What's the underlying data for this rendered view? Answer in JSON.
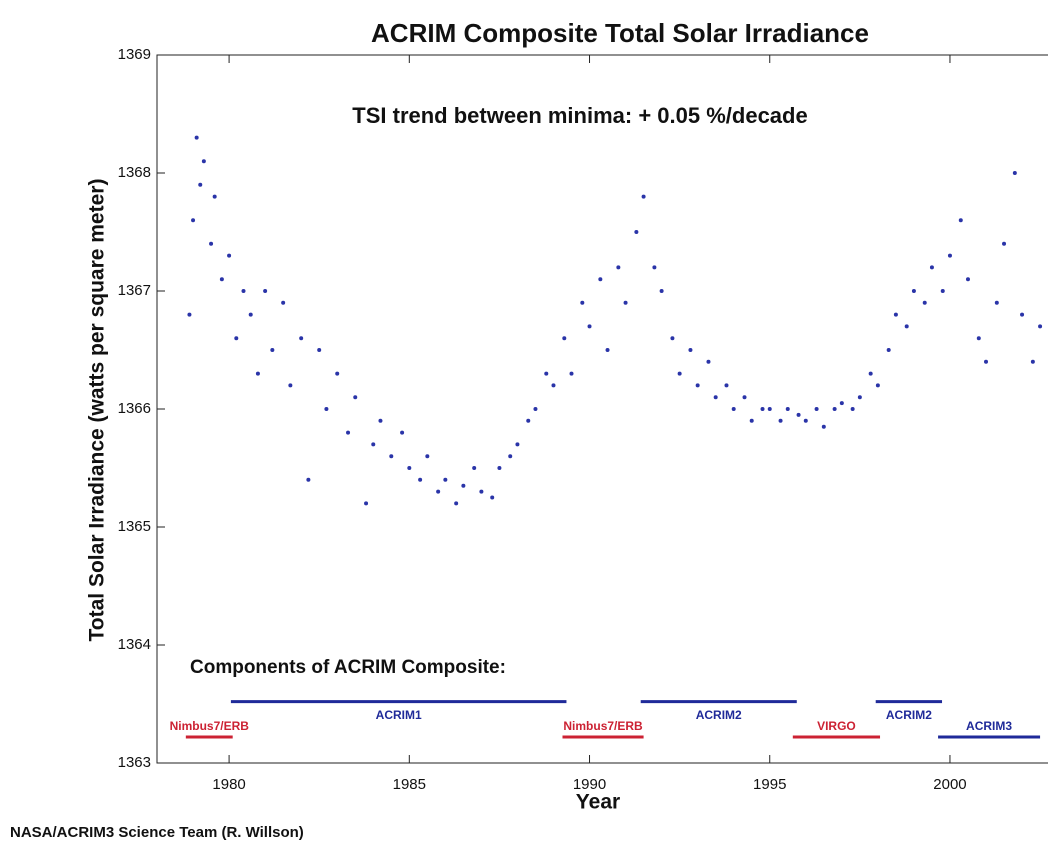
{
  "chart_data": {
    "type": "scatter",
    "title": "ACRIM Composite Total Solar Irradiance",
    "annotation": "TSI trend between minima: + 0.05 %/decade",
    "components_title": "Components of ACRIM Composite:",
    "footer": "NASA/ACRIM3 Science Team (R. Willson)",
    "x_label": "Year",
    "y_label": "Total Solar Irradiance (watts per square meter)",
    "xlim": [
      1978,
      2002.72
    ],
    "ylim": [
      1363,
      1369
    ],
    "xticks": [
      1980,
      1985,
      1990,
      1995,
      2000
    ],
    "yticks": [
      1363,
      1364,
      1365,
      1366,
      1367,
      1368,
      1369
    ],
    "grid": false,
    "series": [
      {
        "color": "#2a34a8",
        "x": [
          1978.9,
          1979.0,
          1979.1,
          1979.2,
          1979.3,
          1979.5,
          1979.6,
          1979.8,
          1980.0,
          1980.2,
          1980.4,
          1980.6,
          1980.8,
          1981.0,
          1981.2,
          1981.5,
          1981.7,
          1982.0,
          1982.2,
          1982.5,
          1982.7,
          1983.0,
          1983.3,
          1983.5,
          1983.8,
          1984.0,
          1984.2,
          1984.5,
          1984.8,
          1985.0,
          1985.3,
          1985.5,
          1985.8,
          1986.0,
          1986.3,
          1986.5,
          1986.8,
          1987.0,
          1987.3,
          1987.5,
          1987.8,
          1988.0,
          1988.3,
          1988.5,
          1988.8,
          1989.0,
          1989.3,
          1989.5,
          1989.8,
          1990.0,
          1990.3,
          1990.5,
          1990.8,
          1991.0,
          1991.3,
          1991.5,
          1991.8,
          1992.0,
          1992.3,
          1992.5,
          1992.8,
          1993.0,
          1993.3,
          1993.5,
          1993.8,
          1994.0,
          1994.3,
          1994.5,
          1994.8,
          1995.0,
          1995.3,
          1995.5,
          1995.8,
          1996.0,
          1996.3,
          1996.5,
          1996.8,
          1997.0,
          1997.3,
          1997.5,
          1997.8,
          1998.0,
          1998.3,
          1998.5,
          1998.8,
          1999.0,
          1999.3,
          1999.5,
          1999.8,
          2000.0,
          2000.3,
          2000.5,
          2000.8,
          2001.0,
          2001.3,
          2001.5,
          2001.8,
          2002.0,
          2002.3,
          2002.5
        ],
        "values": [
          1366.8,
          1367.6,
          1368.3,
          1367.9,
          1368.1,
          1367.4,
          1367.8,
          1367.1,
          1367.3,
          1366.6,
          1367.0,
          1366.8,
          1366.3,
          1367.0,
          1366.5,
          1366.9,
          1366.2,
          1366.6,
          1365.4,
          1366.5,
          1366.0,
          1366.3,
          1365.8,
          1366.1,
          1365.2,
          1365.7,
          1365.9,
          1365.6,
          1365.8,
          1365.5,
          1365.4,
          1365.6,
          1365.3,
          1365.4,
          1365.2,
          1365.35,
          1365.5,
          1365.3,
          1365.25,
          1365.5,
          1365.6,
          1365.7,
          1365.9,
          1366.0,
          1366.3,
          1366.2,
          1366.6,
          1366.3,
          1366.9,
          1366.7,
          1367.1,
          1366.5,
          1367.2,
          1366.9,
          1367.5,
          1367.8,
          1367.2,
          1367.0,
          1366.6,
          1366.3,
          1366.5,
          1366.2,
          1366.4,
          1366.1,
          1366.2,
          1366.0,
          1366.1,
          1365.9,
          1366.0,
          1366.0,
          1365.9,
          1366.0,
          1365.95,
          1365.9,
          1366.0,
          1365.85,
          1366.0,
          1366.05,
          1366.0,
          1366.1,
          1366.3,
          1366.2,
          1366.5,
          1366.8,
          1366.7,
          1367.0,
          1366.9,
          1367.2,
          1367.0,
          1367.3,
          1367.6,
          1367.1,
          1366.6,
          1366.4,
          1366.9,
          1367.4,
          1368.0,
          1366.8,
          1366.4,
          1366.7
        ]
      }
    ],
    "components": [
      {
        "label": "Nimbus7/ERB",
        "start": 1978.8,
        "end": 1980.1,
        "level": 1363.22,
        "color": "#cc2233"
      },
      {
        "label": "ACRIM1",
        "start": 1980.05,
        "end": 1989.36,
        "level": 1363.52,
        "color": "#1f2a99"
      },
      {
        "label": "Nimbus7/ERB",
        "start": 1989.25,
        "end": 1991.5,
        "level": 1363.22,
        "color": "#cc2233"
      },
      {
        "label": "ACRIM2",
        "start": 1991.42,
        "end": 1995.75,
        "level": 1363.52,
        "color": "#1f2a99"
      },
      {
        "label": "VIRGO",
        "start": 1995.64,
        "end": 1998.06,
        "level": 1363.22,
        "color": "#cc2233"
      },
      {
        "label": "ACRIM2",
        "start": 1997.94,
        "end": 1999.78,
        "level": 1363.52,
        "color": "#1f2a99"
      },
      {
        "label": "ACRIM3",
        "start": 1999.67,
        "end": 2002.5,
        "level": 1363.22,
        "color": "#1f2a99"
      }
    ]
  }
}
